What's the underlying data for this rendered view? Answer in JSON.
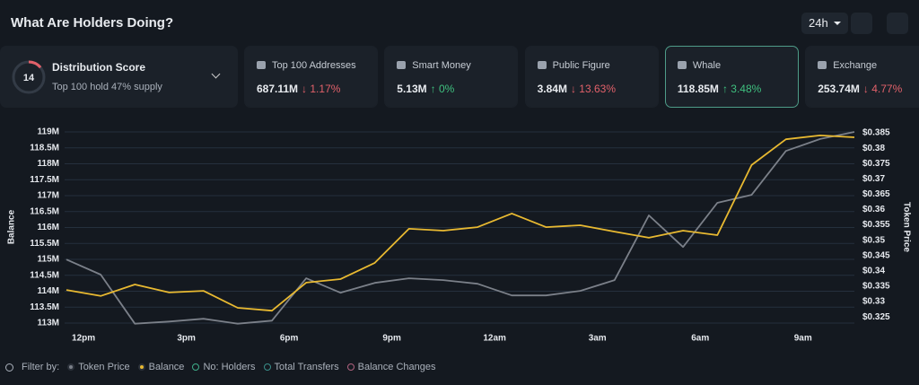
{
  "header": {
    "title": "What Are Holders Doing?",
    "timeframe": "24h"
  },
  "distribution": {
    "label": "Distribution Score",
    "score": 14,
    "subtitle": "Top 100 hold 47% supply"
  },
  "cards": [
    {
      "name": "Top 100 Addresses",
      "value": "687.11M",
      "change": "↓ 1.17%",
      "trend": "down"
    },
    {
      "name": "Smart Money",
      "value": "5.13M",
      "change": "↑ 0%",
      "trend": "up"
    },
    {
      "name": "Public Figure",
      "value": "3.84M",
      "change": "↓ 13.63%",
      "trend": "down"
    },
    {
      "name": "Whale",
      "value": "118.85M",
      "change": "↑ 3.48%",
      "trend": "up"
    },
    {
      "name": "Exchange",
      "value": "253.74M",
      "change": "↓ 4.77%",
      "trend": "down"
    }
  ],
  "selected_card": 3,
  "chart_data": {
    "type": "line",
    "y_label": "Balance",
    "y2_label": "Token Price",
    "x": [
      -0.5,
      0.5,
      1.5,
      2.5,
      3.5,
      4.5,
      5.5,
      6.5,
      7.5,
      8.5,
      9.5,
      10.5,
      11.5,
      12.5,
      13.5,
      14.5,
      15.5,
      16.5,
      17.5,
      18.5,
      19.5,
      20.5,
      21.5,
      22.5
    ],
    "xlim": [
      -0.5,
      22.5
    ],
    "xticks": [
      {
        "value": 0,
        "label": "12pm"
      },
      {
        "value": 3,
        "label": "3pm"
      },
      {
        "value": 6,
        "label": "6pm"
      },
      {
        "value": 9,
        "label": "9pm"
      },
      {
        "value": 12,
        "label": "12am"
      },
      {
        "value": 15,
        "label": "3am"
      },
      {
        "value": 18,
        "label": "6am"
      },
      {
        "value": 21,
        "label": "9am"
      }
    ],
    "ylim": [
      113,
      119
    ],
    "yticks": [
      {
        "value": 113,
        "label": "113M"
      },
      {
        "value": 113.5,
        "label": "113.5M"
      },
      {
        "value": 114,
        "label": "114M"
      },
      {
        "value": 114.5,
        "label": "114.5M"
      },
      {
        "value": 115,
        "label": "115M"
      },
      {
        "value": 115.5,
        "label": "115.5M"
      },
      {
        "value": 116,
        "label": "116M"
      },
      {
        "value": 116.5,
        "label": "116.5M"
      },
      {
        "value": 117,
        "label": "117M"
      },
      {
        "value": 117.5,
        "label": "117.5M"
      },
      {
        "value": 118,
        "label": "118M"
      },
      {
        "value": 118.5,
        "label": "118.5M"
      },
      {
        "value": 119,
        "label": "119M"
      }
    ],
    "y2lim": [
      0.323,
      0.3853
    ],
    "y2ticks": [
      {
        "value": 0.325,
        "label": "$0.325"
      },
      {
        "value": 0.33,
        "label": "$0.33"
      },
      {
        "value": 0.335,
        "label": "$0.335"
      },
      {
        "value": 0.34,
        "label": "$0.34"
      },
      {
        "value": 0.345,
        "label": "$0.345"
      },
      {
        "value": 0.35,
        "label": "$0.35"
      },
      {
        "value": 0.355,
        "label": "$0.355"
      },
      {
        "value": 0.36,
        "label": "$0.36"
      },
      {
        "value": 0.365,
        "label": "$0.365"
      },
      {
        "value": 0.37,
        "label": "$0.37"
      },
      {
        "value": 0.375,
        "label": "$0.375"
      },
      {
        "value": 0.38,
        "label": "$0.38"
      },
      {
        "value": 0.385,
        "label": "$0.385"
      }
    ],
    "grid": true,
    "series": [
      {
        "name": "Token Price",
        "color": "#7b8089",
        "axis": "y2",
        "values": [
          0.3437,
          0.3388,
          0.3228,
          0.3235,
          0.3244,
          0.3228,
          0.3238,
          0.3376,
          0.3329,
          0.3361,
          0.3376,
          0.337,
          0.3358,
          0.332,
          0.332,
          0.3335,
          0.337,
          0.3581,
          0.3478,
          0.3622,
          0.3648,
          0.3791,
          0.383,
          0.3853
        ]
      },
      {
        "name": "Balance",
        "color": "#e8b931",
        "values": [
          114.04,
          113.85,
          114.21,
          113.96,
          114.01,
          113.48,
          113.39,
          114.27,
          114.38,
          114.89,
          115.96,
          115.9,
          116.01,
          116.44,
          116.01,
          116.07,
          115.87,
          115.68,
          115.9,
          115.76,
          117.96,
          118.77,
          118.89,
          118.83
        ]
      }
    ],
    "legend_title": "Filter by:",
    "other_filters": [
      {
        "name": "No: Holders",
        "color": "#3fae8a"
      },
      {
        "name": "Total Transfers",
        "color": "#3a8f8a"
      },
      {
        "name": "Balance Changes",
        "color": "#b0627f"
      }
    ]
  }
}
